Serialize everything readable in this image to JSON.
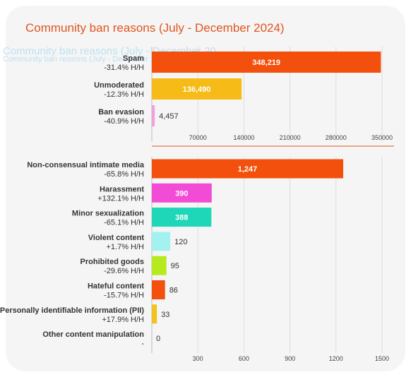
{
  "title": "Community ban reasons (July - December 2024)",
  "ghost_text": "Community ban reasons (July - December 20",
  "ghost_subtext": "Community ban reasons (July - December 20",
  "colors": {
    "title": "#e0551f",
    "divider": "#e0551f",
    "card": "#f5f5f5"
  },
  "chart_data": [
    {
      "type": "bar",
      "orientation": "horizontal",
      "xlim": [
        0,
        350000
      ],
      "x_ticks": [
        "70000",
        "140000",
        "210000",
        "280000",
        "350000"
      ],
      "grid": true,
      "categories": [
        "Spam",
        "Unmoderated",
        "Ban evasion"
      ],
      "changes": [
        "-31.4% H/H",
        "-12.3% H/H",
        "-40.9% H/H"
      ],
      "values": [
        348219,
        136490,
        4457
      ],
      "value_labels": [
        "348,219",
        "136,490",
        "4,457"
      ],
      "colors": [
        "#f2500c",
        "#f6bb16",
        "#f0a2e0"
      ]
    },
    {
      "type": "bar",
      "orientation": "horizontal",
      "xlim": [
        0,
        1500
      ],
      "x_ticks": [
        "300",
        "600",
        "900",
        "1200",
        "1500"
      ],
      "grid": true,
      "categories": [
        "Non-consensual intimate media",
        "Harassment",
        "Minor sexualization",
        "Violent content",
        "Prohibited goods",
        "Hateful content",
        "Personally identifiable information (PII)",
        "Other content manipulation"
      ],
      "changes": [
        "-65.8% H/H",
        "+132.1% H/H",
        "-65.1% H/H",
        "+1.7% H/H",
        "-29.6% H/H",
        "-15.7% H/H",
        "+17.9% H/H",
        "-"
      ],
      "values": [
        1247,
        390,
        388,
        120,
        95,
        86,
        33,
        0
      ],
      "value_labels": [
        "1,247",
        "390",
        "388",
        "120",
        "95",
        "86",
        "33",
        "0"
      ],
      "colors": [
        "#f2500c",
        "#f24bd6",
        "#1ed6b8",
        "#a4f2ef",
        "#b6ea1f",
        "#f2500c",
        "#f2c21f",
        "#cccccc"
      ]
    }
  ]
}
